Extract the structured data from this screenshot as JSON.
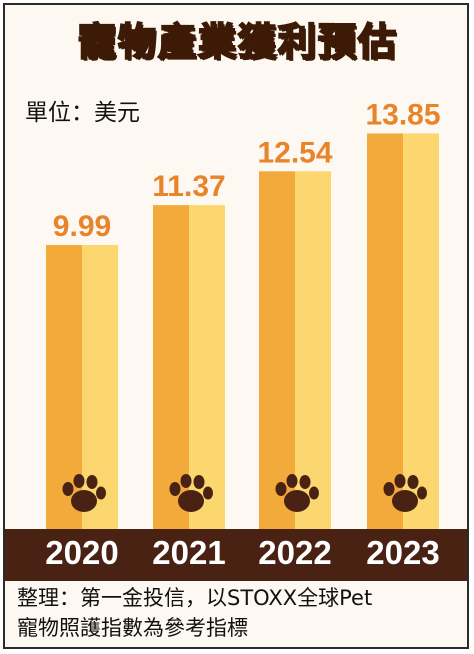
{
  "title": "寵物產業獲利預估",
  "unit_label": "單位：美元",
  "source": {
    "line1": "整理：第一金投信，以STOXX全球Pet",
    "line2": "寵物照護指數為參考指標"
  },
  "colors": {
    "bar_left": "#f2aa3a",
    "bar_right": "#fcd66e",
    "value_label": "#e8842a",
    "paw": "#4a2213",
    "band": "#4a2213",
    "title": "#7a3b12"
  },
  "icons": [
    "paw-icon"
  ],
  "chart_data": {
    "type": "bar",
    "categories": [
      "2020",
      "2021",
      "2022",
      "2023"
    ],
    "values": [
      9.99,
      11.37,
      12.54,
      13.85
    ],
    "value_labels": [
      "9.99",
      "11.37",
      "12.54",
      "13.85"
    ],
    "title": "寵物產業獲利預估",
    "unit": "單位：美元",
    "xlabel": "",
    "ylabel": "",
    "grid": false,
    "legend": "none"
  }
}
